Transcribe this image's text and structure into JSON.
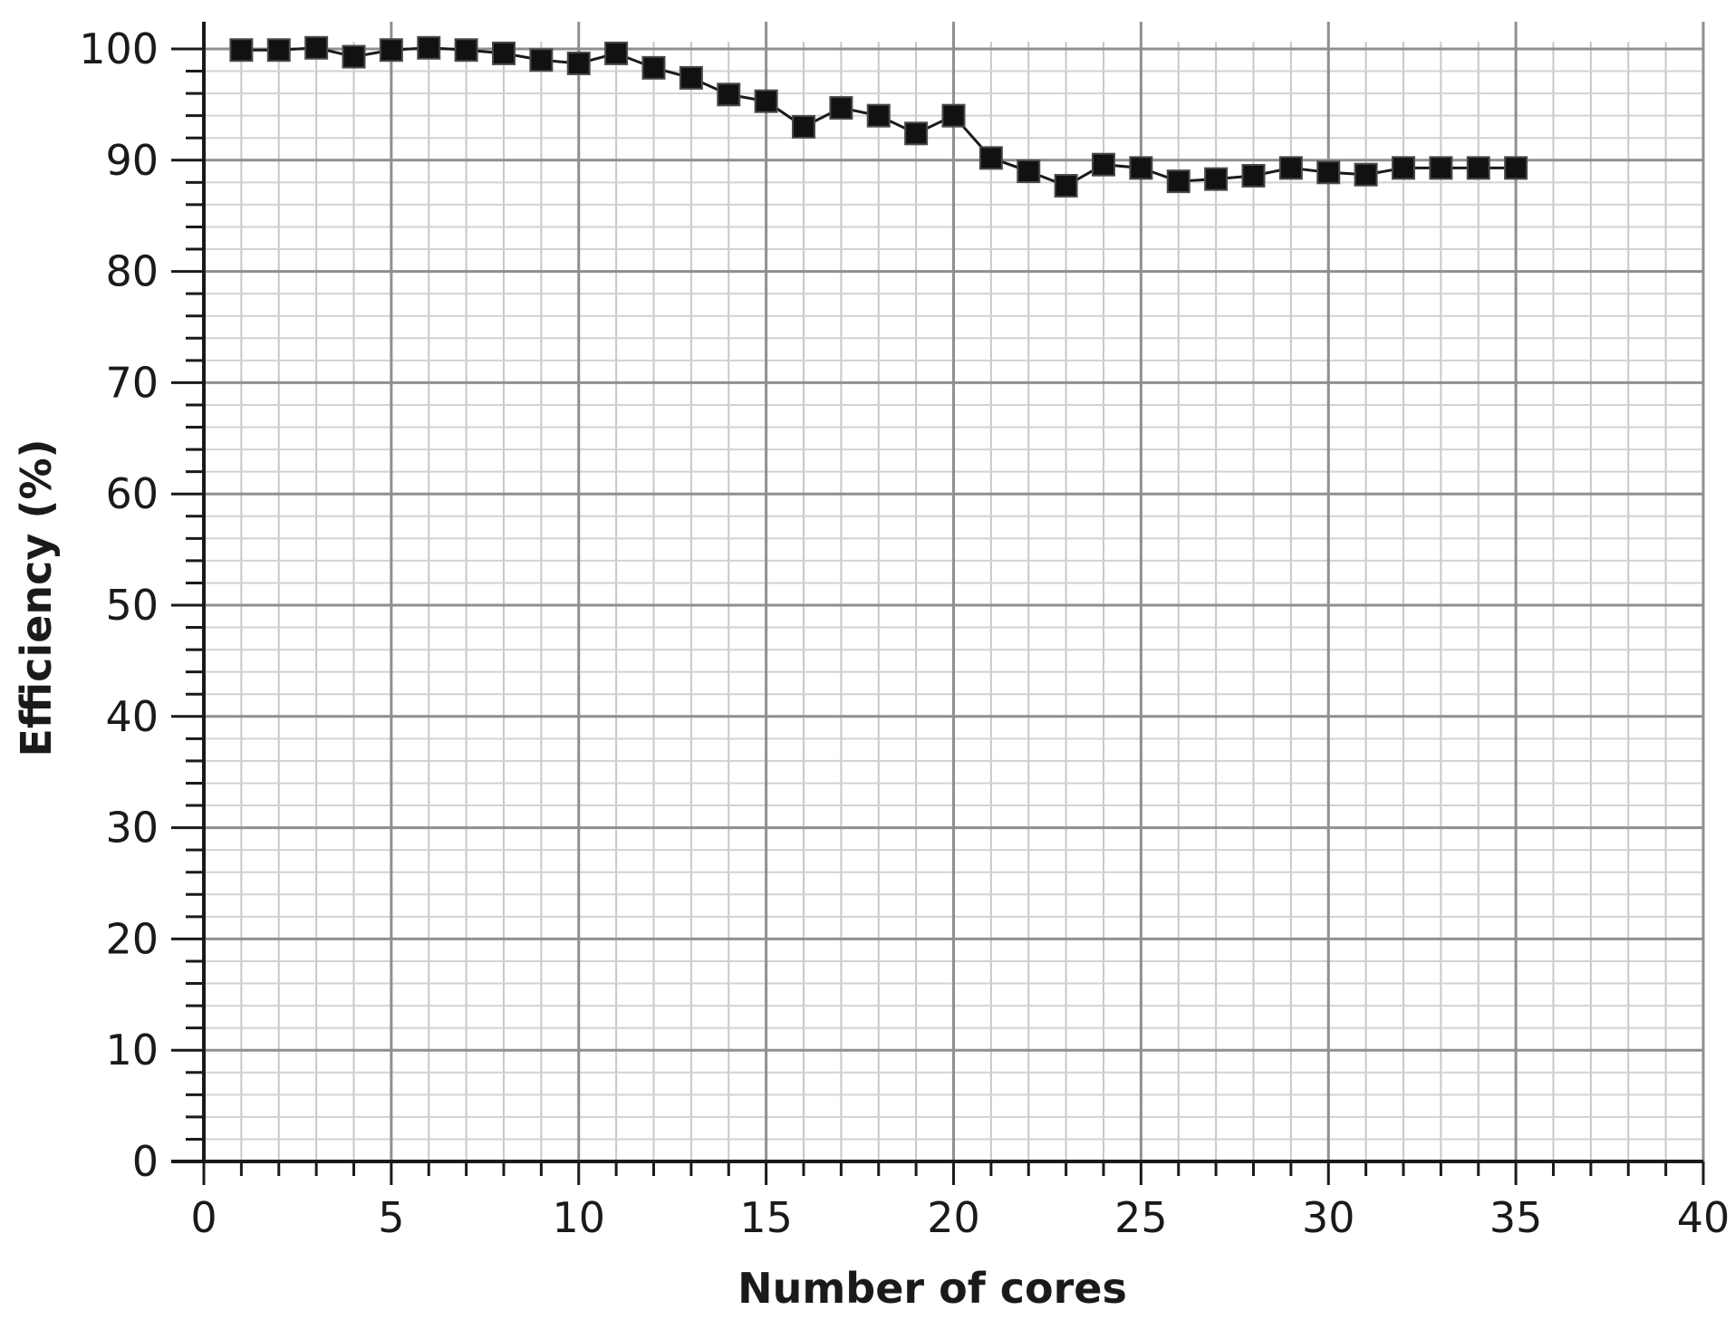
{
  "chart_data": {
    "type": "line",
    "title": "",
    "xlabel": "Number of cores",
    "ylabel": "Efficiency (%)",
    "xlim": [
      0,
      40
    ],
    "ylim": [
      0,
      100
    ],
    "x_ticks": [
      "0",
      "5",
      "10",
      "15",
      "20",
      "25",
      "30",
      "35",
      "40"
    ],
    "y_ticks": [
      "0",
      "10",
      "20",
      "30",
      "40",
      "50",
      "60",
      "70",
      "80",
      "90",
      "100"
    ],
    "grid": true,
    "legend": "none",
    "marker": "square",
    "line_color": "#1a1a1a",
    "marker_color": "#111111",
    "series": [
      {
        "x": [
          1,
          2,
          3,
          4,
          5,
          6,
          7,
          8,
          9,
          10,
          11,
          12,
          13,
          14,
          15,
          16,
          17,
          18,
          19,
          20,
          21,
          22,
          23,
          24,
          25,
          26,
          27,
          28,
          29,
          30,
          31,
          32,
          33,
          34,
          35
        ],
        "values": [
          99.9,
          99.9,
          100.1,
          99.3,
          99.9,
          100.1,
          99.9,
          99.6,
          99.0,
          98.7,
          99.6,
          98.3,
          97.4,
          95.9,
          95.3,
          93.0,
          94.7,
          94.0,
          92.4,
          94.0,
          90.2,
          89.0,
          87.7,
          89.6,
          89.3,
          88.1,
          88.3,
          88.6,
          89.3,
          88.9,
          88.7,
          89.3,
          89.3,
          89.3,
          89.3
        ]
      }
    ]
  }
}
